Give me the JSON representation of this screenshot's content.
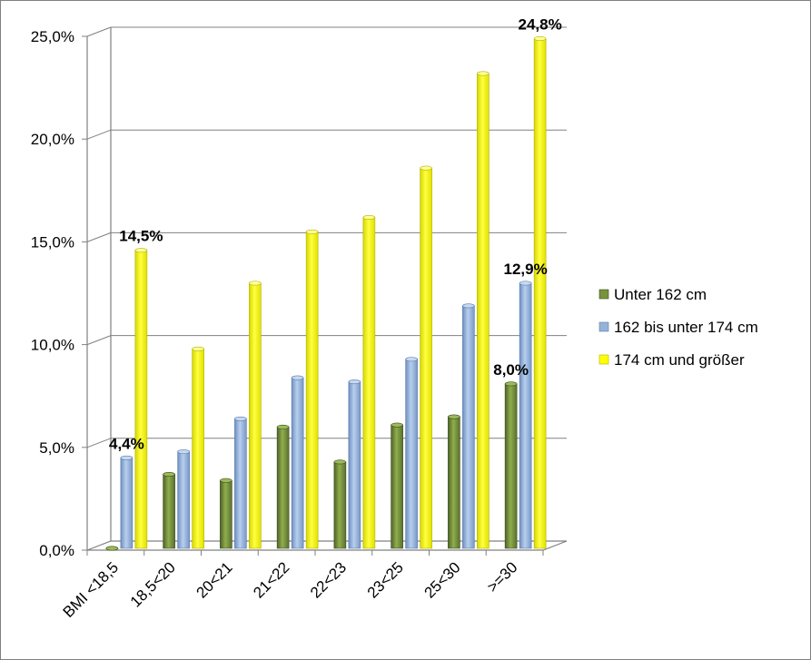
{
  "chart_data": {
    "type": "bar",
    "title": "",
    "xlabel": "",
    "ylabel": "",
    "ylim": [
      0,
      25
    ],
    "yticks": [
      "0,0%",
      "5,0%",
      "10,0%",
      "15,0%",
      "20,0%",
      "25,0%"
    ],
    "grid": true,
    "legend_position": "right",
    "categories": [
      "BMI <18,5",
      "18,5<20",
      "20<21",
      "21<22",
      "22<23",
      "23<25",
      "25<30",
      ">=30"
    ],
    "series": [
      {
        "name": "Unter 162 cm",
        "color": "#77933c",
        "values": [
          0.0,
          3.6,
          3.3,
          5.9,
          4.2,
          6.0,
          6.4,
          8.0
        ]
      },
      {
        "name": "162 bis unter 174 cm",
        "color": "#95b3d7",
        "values": [
          4.4,
          4.7,
          6.3,
          8.3,
          8.1,
          9.2,
          11.8,
          12.9
        ]
      },
      {
        "name": "174 cm und größer",
        "color": "#ffff00",
        "values": [
          14.5,
          9.7,
          12.9,
          15.4,
          16.1,
          18.5,
          23.1,
          24.8
        ]
      }
    ],
    "data_labels": [
      {
        "series": 1,
        "index": 0,
        "text": "4,4%"
      },
      {
        "series": 2,
        "index": 0,
        "text": "14,5%"
      },
      {
        "series": 0,
        "index": 7,
        "text": "8,0%"
      },
      {
        "series": 1,
        "index": 7,
        "text": "12,9%"
      },
      {
        "series": 2,
        "index": 7,
        "text": "24,8%"
      }
    ]
  }
}
